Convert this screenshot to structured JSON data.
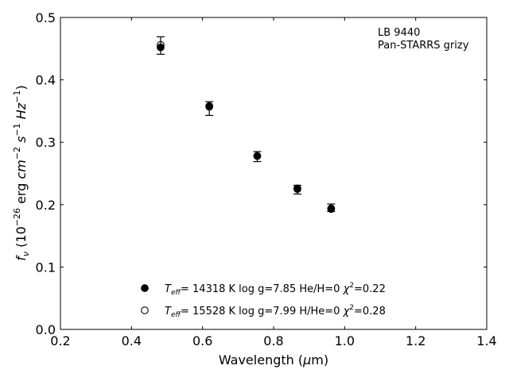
{
  "chart_data": {
    "type": "scatter",
    "title": "",
    "annotation": [
      "LB 9440",
      "Pan-STARRS grizy"
    ],
    "xlim": [
      0.2,
      1.4
    ],
    "ylim": [
      0.0,
      0.5
    ],
    "xticks": [
      0.2,
      0.4,
      0.6,
      0.8,
      1.0,
      1.2,
      1.4
    ],
    "yticks": [
      0.0,
      0.1,
      0.2,
      0.3,
      0.4,
      0.5
    ],
    "xtick_labels": [
      "0.2",
      "0.4",
      "0.6",
      "0.8",
      "1.0",
      "1.2",
      "1.4"
    ],
    "ytick_labels": [
      "0.0",
      "0.1",
      "0.2",
      "0.3",
      "0.4",
      "0.5"
    ],
    "observed": {
      "x": [
        0.482,
        0.619,
        0.754,
        0.867,
        0.962
      ],
      "y": [
        0.455,
        0.354,
        0.277,
        0.224,
        0.195
      ],
      "yerr": [
        0.014,
        0.011,
        0.008,
        0.007,
        0.006
      ],
      "color": "#000000"
    },
    "series": [
      {
        "marker": "filled",
        "x": [
          0.482,
          0.619,
          0.754,
          0.867,
          0.962
        ],
        "y": [
          0.452,
          0.357,
          0.278,
          0.226,
          0.194
        ]
      },
      {
        "marker": "open",
        "x": [
          0.482,
          0.619,
          0.754,
          0.867,
          0.962
        ],
        "y": [
          0.456,
          0.358,
          0.278,
          0.225,
          0.193
        ]
      }
    ],
    "legend": {
      "placement": "lower-center",
      "entries": [
        {
          "marker": "filled",
          "label_prefix": "T",
          "label_sub": "eff",
          "label_mid": "= 14318 K  log g=7.85  He/H=0  ",
          "label_chi": "χ",
          "label_sup": "2",
          "label_end": "=0.22"
        },
        {
          "marker": "open",
          "label_prefix": "T",
          "label_sub": "eff",
          "label_mid": "= 15528 K  log g=7.99  H/He=0  ",
          "label_chi": "χ",
          "label_sup": "2",
          "label_end": "=0.28"
        }
      ]
    }
  }
}
